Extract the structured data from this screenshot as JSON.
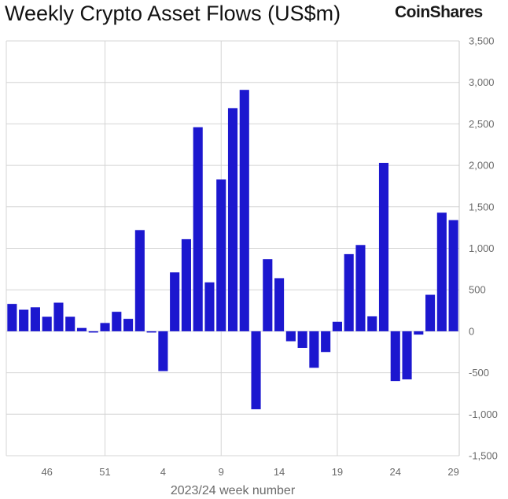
{
  "header": {
    "title": "Weekly Crypto Asset Flows (US$m)",
    "brand": "CoinShares"
  },
  "chart_data": {
    "type": "bar",
    "title": "Weekly Crypto Asset Flows (US$m)",
    "xlabel": "2023/24 week number",
    "ylabel": "",
    "ylim": [
      -1500,
      3500
    ],
    "yticks": [
      -1500,
      -1000,
      -500,
      0,
      500,
      1000,
      1500,
      2000,
      2500,
      3000,
      3500
    ],
    "ytick_labels": [
      "-1,500",
      "-1,000",
      "-500",
      "0",
      "500",
      "1,000",
      "1,500",
      "2,000",
      "2,500",
      "3,000",
      "3,500"
    ],
    "x_tick_labels": [
      {
        "label": "46",
        "index": 3
      },
      {
        "label": "51",
        "index": 8
      },
      {
        "label": "4",
        "index": 13
      },
      {
        "label": "9",
        "index": 18
      },
      {
        "label": "14",
        "index": 23
      },
      {
        "label": "19",
        "index": 28
      },
      {
        "label": "24",
        "index": 33
      },
      {
        "label": "29",
        "index": 38
      }
    ],
    "vertical_gridlines_at_index": [
      8,
      18,
      28,
      38
    ],
    "grid": true,
    "bar_color": "#1c17cf",
    "values": [
      330,
      260,
      290,
      175,
      345,
      175,
      40,
      -15,
      100,
      235,
      150,
      1220,
      -15,
      -480,
      710,
      1110,
      2460,
      590,
      1830,
      2690,
      2910,
      -940,
      870,
      640,
      -120,
      -200,
      -440,
      -250,
      115,
      930,
      1040,
      180,
      2030,
      -600,
      -580,
      -40,
      440,
      1430,
      1340
    ]
  }
}
